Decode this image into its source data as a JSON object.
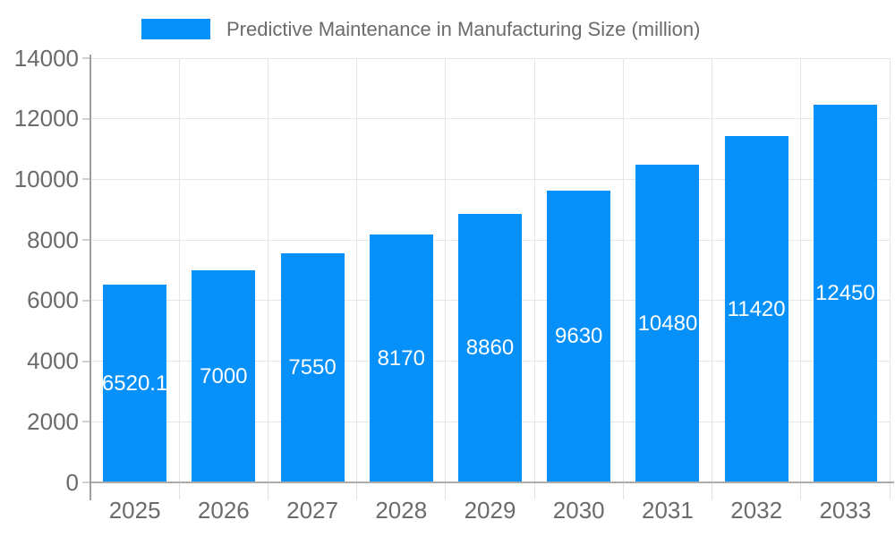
{
  "chart_data": {
    "type": "bar",
    "title": "Predictive Maintenance in Manufacturing Size (million)",
    "legend_position": "top",
    "categories": [
      "2025",
      "2026",
      "2027",
      "2028",
      "2029",
      "2030",
      "2031",
      "2032",
      "2033"
    ],
    "values": [
      6520.1,
      7000,
      7550,
      8170,
      8860,
      9630,
      10480,
      11420,
      12450
    ],
    "value_labels": [
      "6520.1",
      "7000",
      "7550",
      "8170",
      "8860",
      "9630",
      "10480",
      "11420",
      "12450"
    ],
    "xlabel": "",
    "ylabel": "",
    "ylim": [
      0,
      14000
    ],
    "yticks": [
      0,
      2000,
      4000,
      6000,
      8000,
      10000,
      12000,
      14000
    ],
    "ytick_labels": [
      "0",
      "2000",
      "4000",
      "6000",
      "8000",
      "10000",
      "12000",
      "14000"
    ],
    "grid": true,
    "colors": {
      "bar": "#0690fa",
      "axis_text": "#6b6b6b",
      "legend_text": "#6b6b6b",
      "grid_line": "#e6e6e6",
      "axis_line_y": "#9e9e9e",
      "axis_line_x": "#ababab",
      "y_tick": "#cfcfcf",
      "x_tick": "#e0e0e0",
      "bar_label": "#ffffff",
      "background": "#ffffff"
    }
  }
}
